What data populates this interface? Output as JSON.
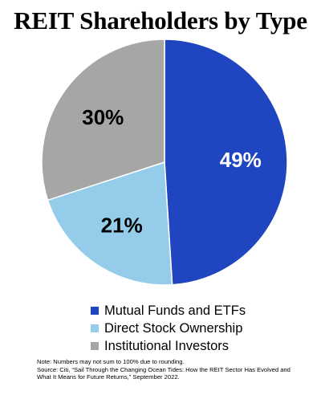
{
  "chart_data": {
    "type": "pie",
    "title": "REIT Shareholders by Type",
    "slices": [
      {
        "name": "Mutual Funds and ETFs",
        "value": 49,
        "label": "49%",
        "color": "#1f45c0",
        "label_color": "#ffffff"
      },
      {
        "name": "Direct Stock Ownership",
        "value": 21,
        "label": "21%",
        "color": "#94ccea",
        "label_color": "#000000"
      },
      {
        "name": "Institutional Investors",
        "value": 30,
        "label": "30%",
        "color": "#a6a6a6",
        "label_color": "#000000"
      }
    ],
    "start_angle_deg": 0,
    "direction": "clockwise",
    "legend_position": "bottom"
  },
  "notes": {
    "line1": "Note: Numbers may not sum to 100% due to rounding.",
    "line2": "Source: Citi, “Sail Through the Changing Ocean Tides: How the REIT Sector Has Evolved and",
    "line3": "What It Means for Future Returns,” September 2022."
  }
}
